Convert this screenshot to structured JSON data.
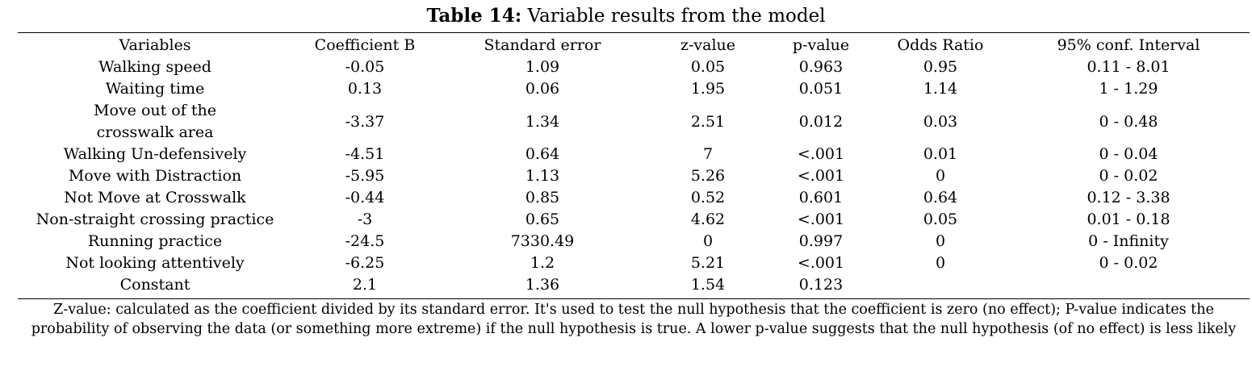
{
  "caption": {
    "label": "Table 14:",
    "title": " Variable results from the model"
  },
  "table": {
    "headers": [
      "Variables",
      "Coefficient B",
      "Standard error",
      "z-value",
      "p-value",
      "Odds Ratio",
      "95% conf. Interval"
    ],
    "rows": [
      [
        "Walking speed",
        "-0.05",
        "1.09",
        "0.05",
        "0.963",
        "0.95",
        "0.11 - 8.01"
      ],
      [
        "Waiting time",
        "0.13",
        "0.06",
        "1.95",
        "0.051",
        "1.14",
        "1 - 1.29"
      ],
      [
        "Move out of the crosswalk area",
        "-3.37",
        "1.34",
        "2.51",
        "0.012",
        "0.03",
        "0 - 0.48"
      ],
      [
        "Walking Un-defensively",
        "-4.51",
        "0.64",
        "7",
        "<.001",
        "0.01",
        "0 - 0.04"
      ],
      [
        "Move with Distraction",
        "-5.95",
        "1.13",
        "5.26",
        "<.001",
        "0",
        "0 - 0.02"
      ],
      [
        "Not Move at Crosswalk",
        "-0.44",
        "0.85",
        "0.52",
        "0.601",
        "0.64",
        "0.12 - 3.38"
      ],
      [
        "Non-straight crossing practice",
        "-3",
        "0.65",
        "4.62",
        "<.001",
        "0.05",
        "0.01 - 0.18"
      ],
      [
        "Running practice",
        "-24.5",
        "7330.49",
        "0",
        "0.997",
        "0",
        "0 - Infinity"
      ],
      [
        "Not looking attentively",
        "-6.25",
        "1.2",
        "5.21",
        "<.001",
        "0",
        "0 - 0.02"
      ],
      [
        "Constant",
        "2.1",
        "1.36",
        "1.54",
        "0.123",
        "",
        ""
      ]
    ]
  },
  "note": "Z-value: calculated as the coefficient divided by its standard error. It's used to test the null hypothesis that the coefficient is zero (no effect); P-value indicates the probability of observing the data (or something more extreme) if the null hypothesis is true. A lower p-value suggests that the null hypothesis (of no effect) is less likely"
}
